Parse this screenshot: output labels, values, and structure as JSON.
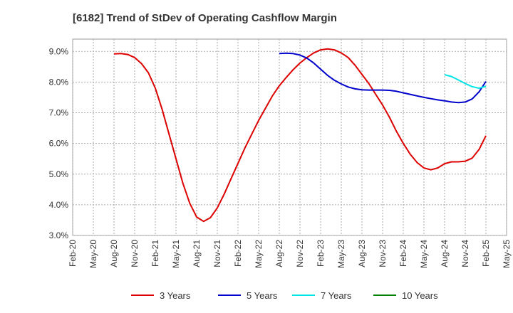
{
  "chart_data": {
    "type": "line",
    "title": "[6182]  Trend of StDev of Operating Cashflow Margin",
    "xlabel": "",
    "ylabel": "",
    "x_ticks": [
      "Feb-20",
      "May-20",
      "Aug-20",
      "Nov-20",
      "Feb-21",
      "May-21",
      "Aug-21",
      "Nov-21",
      "Feb-22",
      "May-22",
      "Aug-22",
      "Nov-22",
      "Feb-23",
      "May-23",
      "Aug-23",
      "Nov-23",
      "Feb-24",
      "May-24",
      "Aug-24",
      "Nov-24",
      "Feb-25",
      "May-25"
    ],
    "y_ticks": [
      "3.0%",
      "4.0%",
      "5.0%",
      "6.0%",
      "7.0%",
      "8.0%",
      "9.0%"
    ],
    "ylim": [
      3.0,
      9.4
    ],
    "grid": true,
    "legend_position": "bottom",
    "series": [
      {
        "name": "3 Years",
        "color": "#dd0000",
        "x": [
          "Aug-20",
          "Sep-20",
          "Oct-20",
          "Nov-20",
          "Dec-20",
          "Jan-21",
          "Feb-21",
          "Mar-21",
          "Apr-21",
          "May-21",
          "Jun-21",
          "Jul-21",
          "Aug-21",
          "Sep-21",
          "Oct-21",
          "Nov-21",
          "Dec-21",
          "Jan-22",
          "Feb-22",
          "Mar-22",
          "Apr-22",
          "May-22",
          "Jun-22",
          "Jul-22",
          "Aug-22",
          "Sep-22",
          "Oct-22",
          "Nov-22",
          "Dec-22",
          "Jan-23",
          "Feb-23",
          "Mar-23",
          "Apr-23",
          "May-23",
          "Jun-23",
          "Jul-23",
          "Aug-23",
          "Sep-23",
          "Oct-23",
          "Nov-23",
          "Dec-23",
          "Jan-24",
          "Feb-24",
          "Mar-24",
          "Apr-24",
          "May-24",
          "Jun-24",
          "Jul-24",
          "Aug-24",
          "Sep-24",
          "Oct-24",
          "Nov-24",
          "Dec-24",
          "Jan-25",
          "Feb-25"
        ],
        "values": [
          8.92,
          8.93,
          8.9,
          8.8,
          8.6,
          8.3,
          7.8,
          7.1,
          6.3,
          5.5,
          4.7,
          4.05,
          3.6,
          3.46,
          3.58,
          3.9,
          4.35,
          4.85,
          5.35,
          5.85,
          6.3,
          6.75,
          7.15,
          7.55,
          7.88,
          8.15,
          8.4,
          8.62,
          8.8,
          8.95,
          9.05,
          9.08,
          9.05,
          8.95,
          8.8,
          8.55,
          8.25,
          7.95,
          7.6,
          7.25,
          6.85,
          6.4,
          6.0,
          5.65,
          5.38,
          5.2,
          5.14,
          5.2,
          5.34,
          5.4,
          5.4,
          5.42,
          5.52,
          5.8,
          6.25
        ]
      },
      {
        "name": "5 Years",
        "color": "#0000cc",
        "x": [
          "Aug-22",
          "Sep-22",
          "Oct-22",
          "Nov-22",
          "Dec-22",
          "Jan-23",
          "Feb-23",
          "Mar-23",
          "Apr-23",
          "May-23",
          "Jun-23",
          "Jul-23",
          "Aug-23",
          "Sep-23",
          "Oct-23",
          "Nov-23",
          "Dec-23",
          "Jan-24",
          "Feb-24",
          "Mar-24",
          "Apr-24",
          "May-24",
          "Jun-24",
          "Jul-24",
          "Aug-24",
          "Sep-24",
          "Oct-24",
          "Nov-24",
          "Dec-24",
          "Jan-25",
          "Feb-25"
        ],
        "values": [
          8.93,
          8.94,
          8.93,
          8.88,
          8.78,
          8.62,
          8.42,
          8.22,
          8.06,
          7.94,
          7.84,
          7.78,
          7.75,
          7.74,
          7.74,
          7.74,
          7.73,
          7.7,
          7.65,
          7.6,
          7.55,
          7.5,
          7.46,
          7.42,
          7.39,
          7.35,
          7.33,
          7.35,
          7.45,
          7.68,
          8.02
        ]
      },
      {
        "name": "7 Years",
        "color": "#00e5e5",
        "x": [
          "Aug-24",
          "Sep-24",
          "Oct-24",
          "Nov-24",
          "Dec-24",
          "Jan-25",
          "Feb-25"
        ],
        "values": [
          8.24,
          8.18,
          8.07,
          7.95,
          7.85,
          7.8,
          7.86
        ]
      },
      {
        "name": "10 Years",
        "color": "#008000",
        "x": [],
        "values": []
      }
    ]
  }
}
